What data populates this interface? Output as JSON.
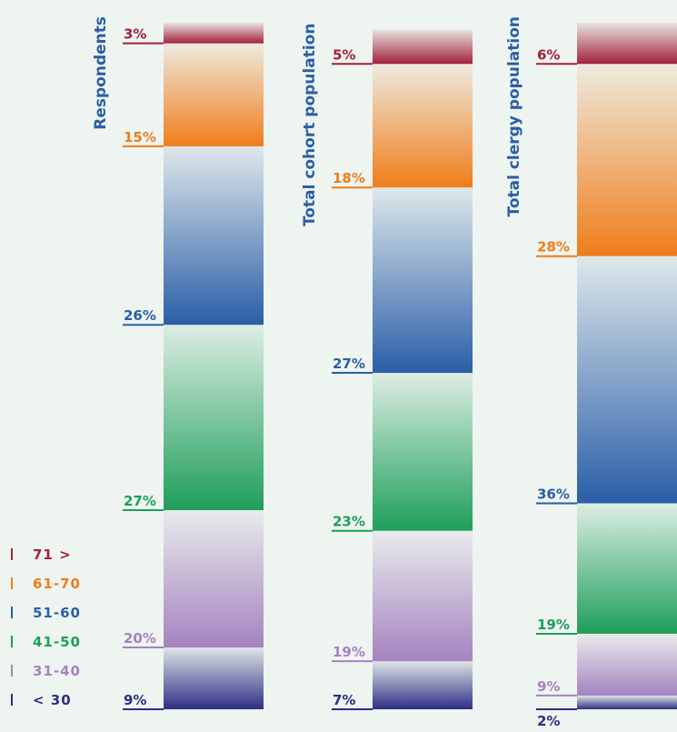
{
  "chart_data": {
    "type": "stacked-bar",
    "categories": [
      "Respondents",
      "Total cohort population",
      "Total clergy population"
    ],
    "series": [
      {
        "name": "71 >",
        "color": "#a3213a",
        "values": [
          3,
          5,
          6
        ],
        "value_labels": [
          "3%",
          "5%",
          "6%"
        ]
      },
      {
        "name": "61-70",
        "color": "#ef7d1a",
        "values": [
          15,
          18,
          28
        ],
        "value_labels": [
          "15%",
          "18%",
          "28%"
        ]
      },
      {
        "name": "51-60",
        "color": "#2a5ea8",
        "values": [
          26,
          27,
          36
        ],
        "value_labels": [
          "26%",
          "27%",
          "36%"
        ]
      },
      {
        "name": "41-50",
        "color": "#1e9e5a",
        "values": [
          27,
          23,
          19
        ],
        "value_labels": [
          "27%",
          "23%",
          "19%"
        ]
      },
      {
        "name": "31-40",
        "color": "#a583bf",
        "values": [
          20,
          19,
          9
        ],
        "value_labels": [
          "20%",
          "19%",
          "9%"
        ]
      },
      {
        "name": "< 30",
        "color": "#2e2e85",
        "values": [
          9,
          7,
          2
        ],
        "value_labels": [
          "9%",
          "7%",
          "2%"
        ]
      }
    ]
  }
}
